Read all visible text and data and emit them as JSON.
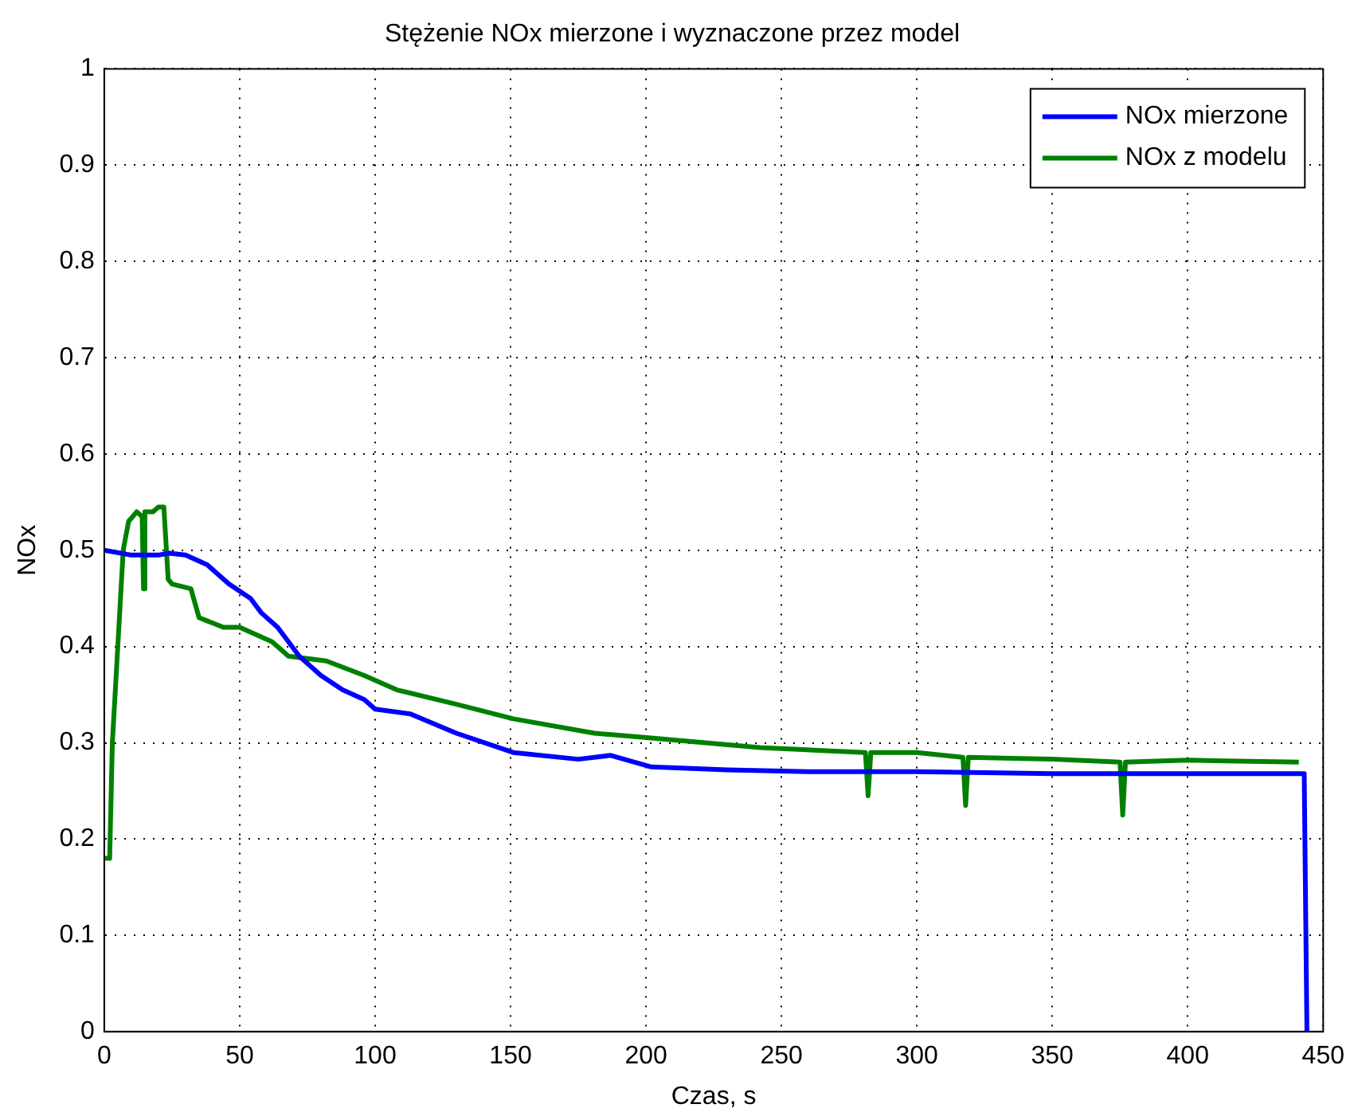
{
  "chart_data": {
    "type": "line",
    "title": "Stężenie NOx mierzone i wyznaczone przez model",
    "xlabel": "Czas, s",
    "ylabel": "NOx",
    "xlim": [
      0,
      450
    ],
    "ylim": [
      0,
      1
    ],
    "xticks": [
      0,
      50,
      100,
      150,
      200,
      250,
      300,
      350,
      400,
      450
    ],
    "yticks": [
      0,
      0.1,
      0.2,
      0.3,
      0.4,
      0.5,
      0.6,
      0.7,
      0.8,
      0.9,
      1
    ],
    "grid": true,
    "legend": "top right",
    "line_style": "solid",
    "marker": "none",
    "series": [
      {
        "name": "NOx mierzone",
        "color": "#0000ff",
        "x": [
          0,
          10,
          20,
          24,
          30,
          38,
          46,
          54,
          58,
          64,
          72,
          80,
          88,
          96,
          100,
          113,
          130,
          151,
          175,
          187,
          202,
          230,
          260,
          300,
          350,
          400,
          443,
          444
        ],
        "values": [
          0.5,
          0.495,
          0.495,
          0.497,
          0.495,
          0.485,
          0.465,
          0.45,
          0.435,
          0.42,
          0.39,
          0.37,
          0.355,
          0.345,
          0.335,
          0.33,
          0.31,
          0.29,
          0.283,
          0.287,
          0.275,
          0.272,
          0.27,
          0.27,
          0.268,
          0.268,
          0.268,
          0
        ]
      },
      {
        "name": "NOx z modelu",
        "color": "#008000",
        "x": [
          0,
          2,
          3,
          5,
          7,
          9,
          12,
          14,
          14.5,
          15,
          16,
          18,
          20,
          22,
          23.6,
          25,
          32,
          35,
          44,
          50,
          62,
          68,
          82,
          96,
          100,
          108,
          130,
          151,
          181,
          202,
          242,
          281,
          282,
          283,
          300,
          317,
          318,
          319,
          350,
          375,
          376,
          377,
          400,
          441
        ],
        "values": [
          0.18,
          0.18,
          0.3,
          0.4,
          0.5,
          0.53,
          0.54,
          0.535,
          0.46,
          0.54,
          0.54,
          0.54,
          0.545,
          0.545,
          0.47,
          0.465,
          0.46,
          0.43,
          0.42,
          0.42,
          0.405,
          0.39,
          0.385,
          0.37,
          0.365,
          0.355,
          0.34,
          0.325,
          0.31,
          0.305,
          0.295,
          0.29,
          0.245,
          0.29,
          0.29,
          0.285,
          0.235,
          0.285,
          0.283,
          0.28,
          0.225,
          0.28,
          0.282,
          0.28
        ]
      }
    ]
  }
}
